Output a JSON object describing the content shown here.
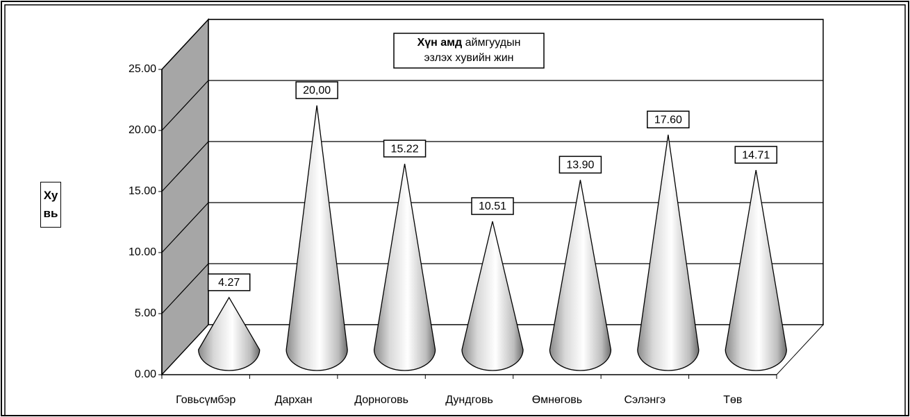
{
  "chart_data": {
    "type": "cone",
    "title": [
      "Хүн амд",
      "аймгуудын",
      "эзлэх хувийн жин"
    ],
    "ylabel": "Хувь",
    "categories": [
      "Говьсүмбэр",
      "Дархан",
      "Дорноговь",
      "Дундговь",
      "Өмнөговь",
      "Сэлэнгэ",
      "Төв"
    ],
    "values": [
      4.27,
      20,
      15.22,
      10.51,
      13.9,
      17.6,
      14.71
    ],
    "value_labels": [
      "4.27",
      "20,00",
      "15.22",
      "10.51",
      "13.90",
      "17.60",
      "14.71"
    ],
    "ylim": [
      0,
      25
    ],
    "yticks": [
      {
        "value": 0,
        "label": "0.00"
      },
      {
        "value": 5,
        "label": "5.00"
      },
      {
        "value": 10,
        "label": "10.00"
      },
      {
        "value": 15,
        "label": "15.00"
      },
      {
        "value": 20,
        "label": "20.00"
      },
      {
        "value": 25,
        "label": "25.00"
      }
    ],
    "grid": true,
    "wall_color": "#a6a6a6"
  }
}
